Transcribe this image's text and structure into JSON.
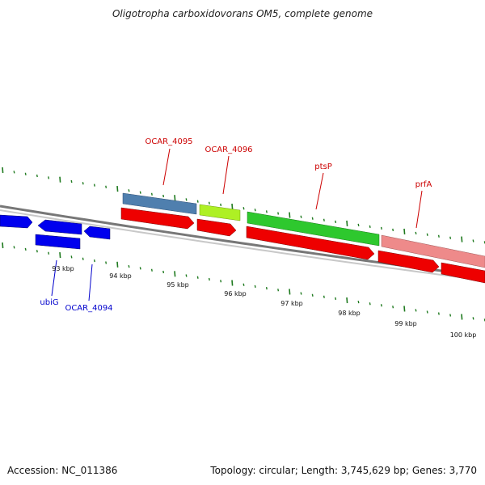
{
  "title": "Oligotropha carboxidovorans OM5, complete genome",
  "footer": {
    "accession": "Accession: NC_011386",
    "summary": "Topology: circular; Length: 3,745,629 bp; Genes: 3,770"
  },
  "colors": {
    "backbone": "#8a8a8a",
    "tick": "#1f7a1f",
    "label_red": "#cc0000",
    "label_blue": "#0000cc",
    "gene_blue": "#0000ee",
    "gene_steel": "#4f7fae",
    "gene_lime": "#aef024",
    "gene_green": "#2ec82e",
    "gene_pink": "#ee8a8a",
    "cds_red": "#ee0000"
  },
  "scale_labels": [
    "93 kbp",
    "94 kbp",
    "95 kbp",
    "96 kbp",
    "97 kbp",
    "98 kbp",
    "99 kbp",
    "100 kbp"
  ],
  "gene_labels": [
    {
      "text": "OCAR_4095",
      "color": "red"
    },
    {
      "text": "OCAR_4096",
      "color": "red"
    },
    {
      "text": "ptsP",
      "color": "red"
    },
    {
      "text": "prfA",
      "color": "red"
    },
    {
      "text": "ubiG",
      "color": "blue"
    },
    {
      "text": "OCAR_4094",
      "color": "blue"
    }
  ]
}
